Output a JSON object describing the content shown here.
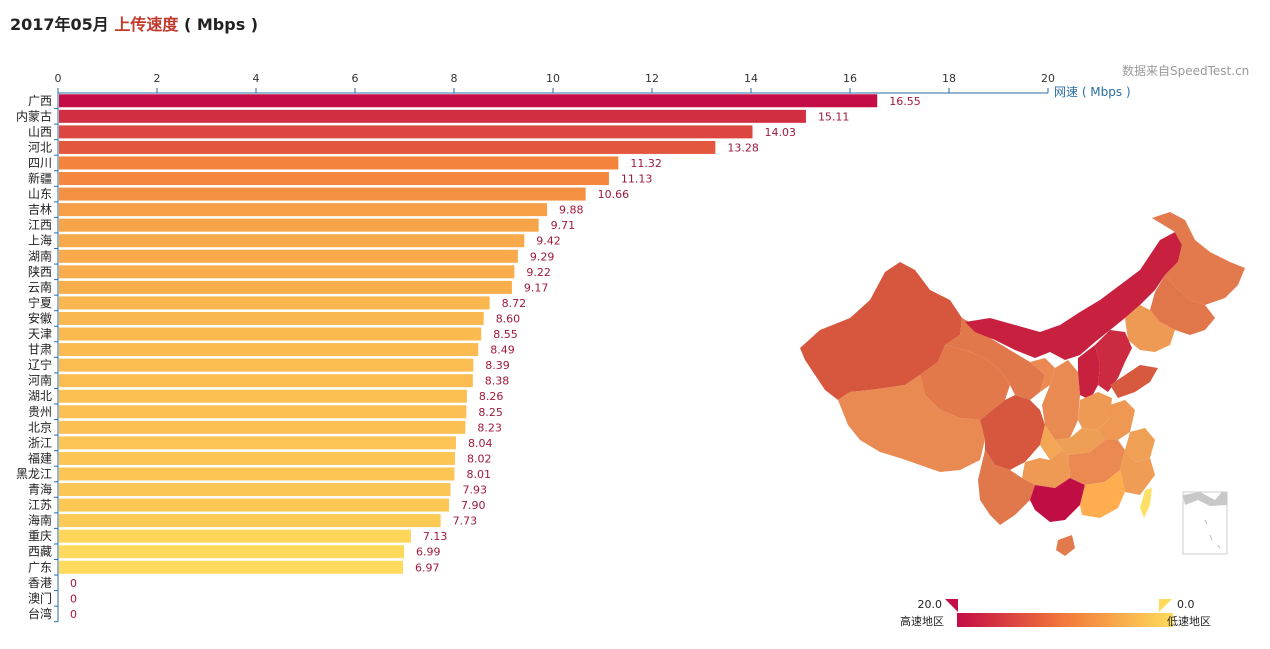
{
  "header": {
    "title_prefix": "2017年05月",
    "title_highlight": "上传速度",
    "title_suffix": "( Mbps )",
    "source": "数据来自SpeedTest.cn"
  },
  "chart_data": {
    "type": "bar",
    "orientation": "horizontal",
    "xlabel": "网速 ( Mbps )",
    "xlim": [
      0,
      20
    ],
    "xticks": [
      0,
      2,
      4,
      6,
      8,
      10,
      12,
      14,
      16,
      18,
      20
    ],
    "categories": [
      "广西",
      "内蒙古",
      "山西",
      "河北",
      "四川",
      "新疆",
      "山东",
      "吉林",
      "江西",
      "上海",
      "湖南",
      "陕西",
      "云南",
      "宁夏",
      "安徽",
      "天津",
      "甘肃",
      "辽宁",
      "河南",
      "湖北",
      "贵州",
      "北京",
      "浙江",
      "福建",
      "黑龙江",
      "青海",
      "江苏",
      "海南",
      "重庆",
      "西藏",
      "广东",
      "香港",
      "澳门",
      "台湾"
    ],
    "values": [
      16.55,
      15.11,
      14.03,
      13.28,
      11.32,
      11.13,
      10.66,
      9.88,
      9.71,
      9.42,
      9.29,
      9.22,
      9.17,
      8.72,
      8.6,
      8.55,
      8.49,
      8.39,
      8.38,
      8.26,
      8.25,
      8.23,
      8.04,
      8.02,
      8.01,
      7.93,
      7.9,
      7.73,
      7.13,
      6.99,
      6.97,
      0,
      0,
      0
    ],
    "value_labels": [
      "16.55",
      "15.11",
      "14.03",
      "13.28",
      "11.32",
      "11.13",
      "10.66",
      "9.88",
      "9.71",
      "9.42",
      "9.29",
      "9.22",
      "9.17",
      "8.72",
      "8.60",
      "8.55",
      "8.49",
      "8.39",
      "8.38",
      "8.26",
      "8.25",
      "8.23",
      "8.04",
      "8.02",
      "8.01",
      "7.93",
      "7.90",
      "7.73",
      "7.13",
      "6.99",
      "6.97",
      "0",
      "0",
      "0"
    ],
    "color_scale": {
      "max": 20,
      "min": 0,
      "high_color": "#c40c46",
      "mid_color": "#f27a3a",
      "low_color": "#ffdb5c"
    },
    "legend": {
      "max_label": "20.0",
      "min_label": "0.0",
      "high_text": "高速地区",
      "low_text": "低速地区",
      "placement": "bottom-right"
    }
  },
  "map": {
    "colors": {
      "dark": "#c8203f",
      "mid_dark": "#d94f3c",
      "mid": "#e0734a",
      "light": "#e88a50",
      "lighter": "#f0a050",
      "yellow": "#ffd35c"
    }
  }
}
